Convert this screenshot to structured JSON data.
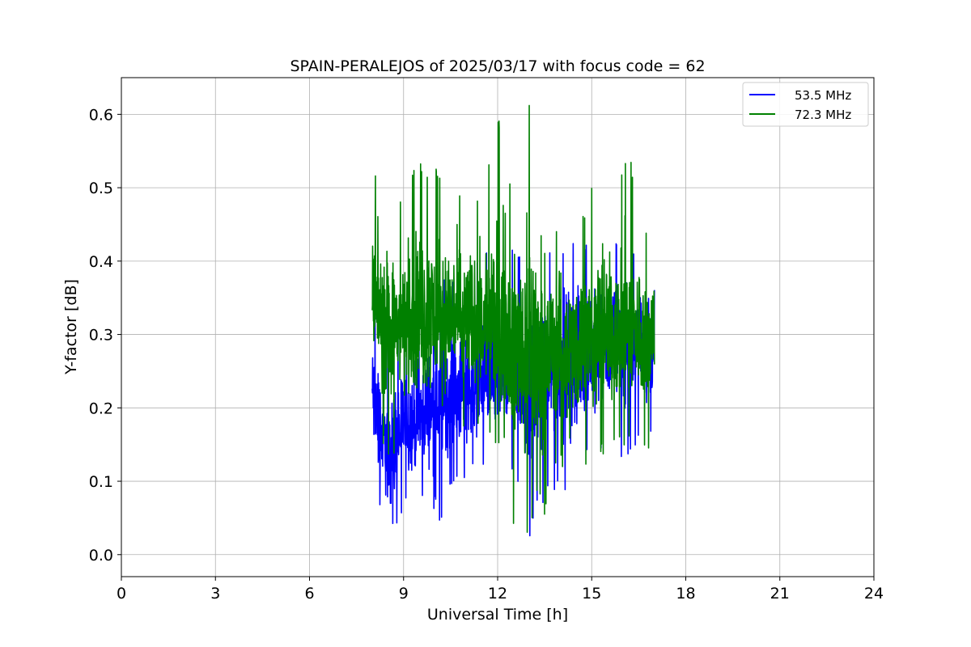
{
  "chart_data": {
    "type": "line",
    "title": "SPAIN-PERALEJOS of 2025/03/17 with focus code = 62",
    "xlabel": "Universal Time [h]",
    "ylabel": "Y-factor [dB]",
    "xlim": [
      0,
      24
    ],
    "ylim": [
      -0.03,
      0.65
    ],
    "xticks": [
      0,
      3,
      6,
      9,
      12,
      15,
      18,
      21,
      24
    ],
    "xtick_labels": [
      "0",
      "3",
      "6",
      "9",
      "12",
      "15",
      "18",
      "21",
      "24"
    ],
    "yticks": [
      0.0,
      0.1,
      0.2,
      0.3,
      0.4,
      0.5,
      0.6
    ],
    "ytick_labels": [
      "0.0",
      "0.1",
      "0.2",
      "0.3",
      "0.4",
      "0.5",
      "0.6"
    ],
    "grid": true,
    "legend_position": "top-right",
    "series": [
      {
        "name": "53.5 MHz",
        "color": "#0000ff",
        "x": [
          8.0,
          8.25,
          8.5,
          8.75,
          9.0,
          9.25,
          9.5,
          9.75,
          10.0,
          10.25,
          10.5,
          10.75,
          11.0,
          11.25,
          11.5,
          11.75,
          12.0,
          12.25,
          12.5,
          12.75,
          13.0,
          13.25,
          13.5,
          13.75,
          14.0,
          14.25,
          14.5,
          14.75,
          15.0,
          15.25,
          15.5,
          15.75,
          16.0,
          16.25,
          16.5,
          16.75,
          17.0
        ],
        "mean": [
          0.22,
          0.17,
          0.14,
          0.15,
          0.18,
          0.17,
          0.18,
          0.19,
          0.2,
          0.21,
          0.21,
          0.22,
          0.23,
          0.23,
          0.24,
          0.24,
          0.24,
          0.24,
          0.25,
          0.24,
          0.22,
          0.23,
          0.24,
          0.26,
          0.26,
          0.26,
          0.26,
          0.27,
          0.28,
          0.29,
          0.29,
          0.29,
          0.29,
          0.29,
          0.3,
          0.3,
          0.3
        ],
        "min": [
          0.07,
          0.06,
          0.0,
          0.04,
          0.06,
          0.07,
          0.07,
          0.08,
          0.06,
          0.03,
          0.08,
          0.09,
          0.1,
          0.11,
          0.12,
          0.12,
          0.1,
          0.1,
          0.11,
          0.09,
          0.0,
          0.06,
          0.07,
          0.08,
          0.1,
          0.05,
          0.1,
          0.12,
          0.14,
          0.14,
          0.15,
          0.14,
          0.13,
          0.14,
          0.15,
          0.14,
          0.16
        ],
        "max": [
          0.35,
          0.32,
          0.3,
          0.31,
          0.33,
          0.34,
          0.35,
          0.36,
          0.37,
          0.38,
          0.38,
          0.39,
          0.4,
          0.4,
          0.41,
          0.42,
          0.42,
          0.42,
          0.42,
          0.41,
          0.39,
          0.4,
          0.41,
          0.42,
          0.43,
          0.43,
          0.43,
          0.43,
          0.43,
          0.43,
          0.44,
          0.43,
          0.43,
          0.42,
          0.41,
          0.41,
          0.4
        ]
      },
      {
        "name": "72.3 MHz",
        "color": "#008000",
        "x": [
          8.0,
          8.25,
          8.5,
          8.75,
          9.0,
          9.25,
          9.5,
          9.75,
          10.0,
          10.25,
          10.5,
          10.75,
          11.0,
          11.25,
          11.5,
          11.75,
          12.0,
          12.25,
          12.5,
          12.75,
          13.0,
          13.25,
          13.5,
          13.75,
          14.0,
          14.25,
          14.5,
          14.75,
          15.0,
          15.25,
          15.5,
          15.75,
          16.0,
          16.25,
          16.5,
          16.75,
          17.0
        ],
        "mean": [
          0.34,
          0.32,
          0.31,
          0.31,
          0.31,
          0.32,
          0.32,
          0.32,
          0.32,
          0.32,
          0.32,
          0.32,
          0.31,
          0.31,
          0.31,
          0.31,
          0.3,
          0.3,
          0.29,
          0.28,
          0.27,
          0.27,
          0.28,
          0.28,
          0.28,
          0.28,
          0.29,
          0.29,
          0.29,
          0.3,
          0.3,
          0.3,
          0.3,
          0.3,
          0.3,
          0.3,
          0.31
        ],
        "min": [
          0.2,
          0.16,
          0.13,
          0.14,
          0.15,
          0.14,
          0.14,
          0.15,
          0.14,
          0.15,
          0.17,
          0.18,
          0.17,
          0.17,
          0.18,
          0.15,
          0.13,
          0.16,
          0.03,
          0.05,
          0.0,
          0.08,
          0.05,
          0.1,
          0.13,
          0.05,
          0.1,
          0.12,
          0.13,
          0.14,
          0.13,
          0.16,
          0.13,
          0.15,
          0.14,
          0.13,
          0.16
        ],
        "max": [
          0.55,
          0.51,
          0.49,
          0.48,
          0.5,
          0.52,
          0.54,
          0.53,
          0.54,
          0.5,
          0.52,
          0.5,
          0.54,
          0.48,
          0.52,
          0.55,
          0.6,
          0.58,
          0.47,
          0.56,
          0.62,
          0.47,
          0.43,
          0.45,
          0.46,
          0.44,
          0.45,
          0.47,
          0.5,
          0.5,
          0.5,
          0.49,
          0.53,
          0.55,
          0.46,
          0.44,
          0.44
        ]
      }
    ]
  }
}
